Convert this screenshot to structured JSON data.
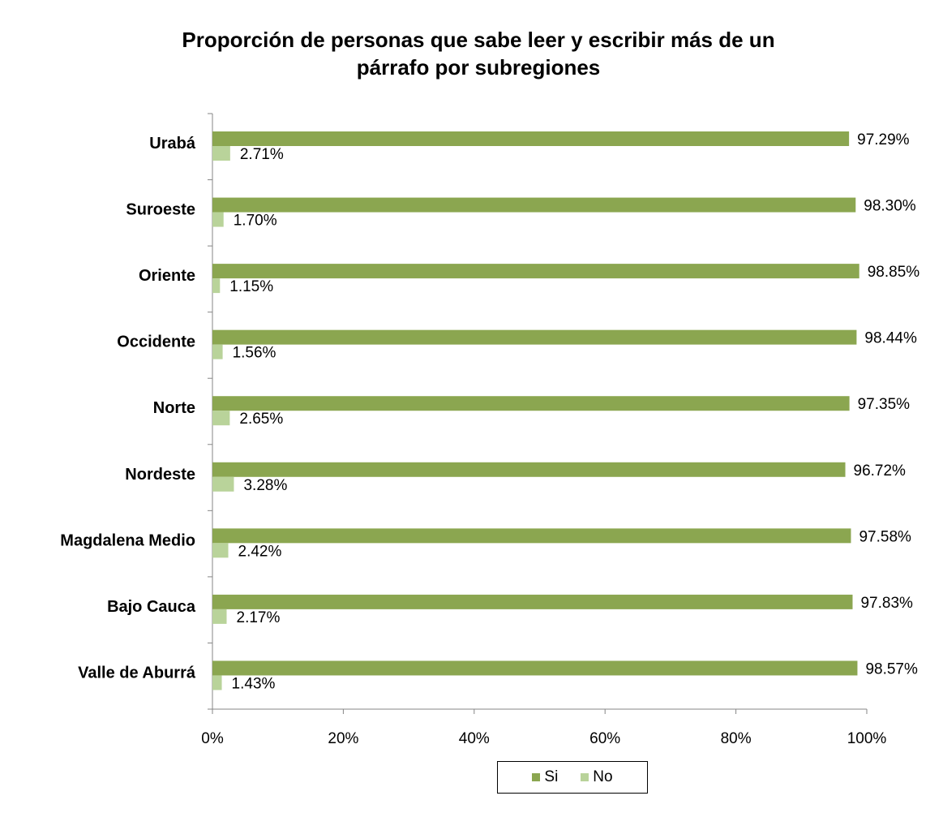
{
  "chart_data": {
    "type": "bar",
    "orientation": "horizontal",
    "title": "Proporción de personas que sabe leer y escribir más de un párrafo por subregiones",
    "title_lines": [
      "Proporción de personas que sabe leer y escribir más de un",
      "párrafo por subregiones"
    ],
    "categories": [
      "Urabá",
      "Suroeste",
      "Oriente",
      "Occidente",
      "Norte",
      "Nordeste",
      "Magdalena Medio",
      "Bajo Cauca",
      "Valle de Aburrá"
    ],
    "series": [
      {
        "name": "Si",
        "color": "#8BA650",
        "values": [
          97.29,
          98.3,
          98.85,
          98.44,
          97.35,
          96.72,
          97.58,
          97.83,
          98.57
        ],
        "labels": [
          "97.29%",
          "98.30%",
          "98.85%",
          "98.44%",
          "97.35%",
          "96.72%",
          "97.58%",
          "97.83%",
          "98.57%"
        ]
      },
      {
        "name": "No",
        "color": "#B9D39A",
        "values": [
          2.71,
          1.7,
          1.15,
          1.56,
          2.65,
          3.28,
          2.42,
          2.17,
          1.43
        ],
        "labels": [
          "2.71%",
          "1.70%",
          "1.15%",
          "1.56%",
          "2.65%",
          "3.28%",
          "2.42%",
          "2.17%",
          "1.43%"
        ]
      }
    ],
    "xlim": [
      0,
      100
    ],
    "x_ticks": [
      "0%",
      "20%",
      "40%",
      "60%",
      "80%",
      "100%"
    ],
    "grid": false,
    "legend_position": "bottom"
  }
}
